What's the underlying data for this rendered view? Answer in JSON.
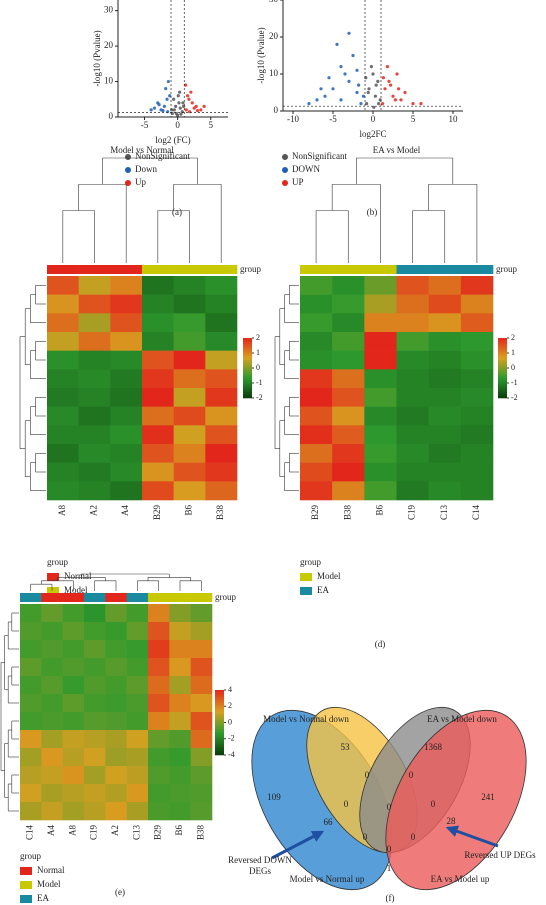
{
  "chart_data": [
    {
      "type": "scatter",
      "caption": "(a)",
      "xlabel": "log2 (FC)",
      "ylabel": "-log10 (Pvalue)",
      "xlim": [
        -9,
        7.6
      ],
      "ylim": [
        0,
        33
      ],
      "xticks": [
        -5,
        0,
        5
      ],
      "yticks": [
        0,
        10,
        20,
        30
      ],
      "thresholds": {
        "x": [
          -1,
          1
        ],
        "y": [
          1.3
        ]
      },
      "series": [
        {
          "name": "NonSignificant",
          "color": "#555555",
          "x": [
            -0.8,
            -0.5,
            -0.3,
            0,
            0.2,
            0.4,
            0.7,
            0.9,
            -0.6,
            0.1,
            -0.2,
            0.5,
            0.3,
            -0.9,
            0.8
          ],
          "values": [
            1,
            2,
            3,
            0.5,
            4,
            2.5,
            1.5,
            3,
            5,
            6,
            1,
            0.8,
            7,
            2,
            4
          ]
        },
        {
          "name": "Down",
          "color": "#1f5fb4",
          "x": [
            -1.5,
            -2,
            -2.5,
            -3,
            -3.5,
            -1.2,
            -1.8,
            -2.2,
            -4,
            -1.4,
            -2.8,
            -1.6
          ],
          "values": [
            1.5,
            3,
            2,
            4,
            2.5,
            6,
            8,
            1.8,
            2,
            10,
            3.5,
            5
          ]
        },
        {
          "name": "Up",
          "color": "#e3261c",
          "x": [
            1.3,
            1.8,
            2.2,
            2.8,
            3.5,
            1.5,
            2,
            2.5,
            1.2,
            3,
            1.7,
            4
          ],
          "values": [
            2,
            1.5,
            4,
            3,
            2,
            6,
            7,
            2.5,
            9,
            1.8,
            5,
            3
          ]
        }
      ]
    },
    {
      "type": "scatter",
      "caption": "(b)",
      "xlabel": "log2FC",
      "ylabel": "-log10 (Pvalue)",
      "xlim": [
        -11.25,
        11.25
      ],
      "ylim": [
        0,
        30
      ],
      "xticks": [
        -10,
        -5,
        0,
        5,
        10
      ],
      "yticks": [
        0,
        10,
        20,
        30
      ],
      "thresholds": {
        "x": [
          -1,
          1
        ],
        "y": [
          1.3
        ]
      },
      "series": [
        {
          "name": "NonSignificant",
          "color": "#555555",
          "x": [
            -0.8,
            -0.5,
            0,
            0.3,
            0.6,
            0.9,
            -0.2,
            0.1,
            -0.6,
            0.4,
            0.7,
            -0.9
          ],
          "values": [
            2,
            6,
            10,
            4,
            8,
            3,
            12,
            1,
            5,
            7,
            2,
            9
          ]
        },
        {
          "name": "DOWN",
          "color": "#1f5fb4",
          "x": [
            -1.5,
            -2,
            -3,
            -4,
            -5,
            -6,
            -7,
            -8,
            -2.5,
            -3.5,
            -4.5,
            -1.2,
            -5.5,
            -3,
            -2,
            -6.5,
            -1.8,
            -4
          ],
          "values": [
            2,
            5,
            8,
            12,
            6,
            4,
            3,
            2,
            15,
            10,
            18,
            4,
            9,
            21,
            11,
            6,
            7,
            3
          ]
        },
        {
          "name": "UP",
          "color": "#e3261c",
          "x": [
            1.2,
            1.5,
            2,
            2.5,
            3,
            3.5,
            4,
            5,
            1.8,
            2.2,
            2.8,
            6,
            1.3,
            3.2
          ],
          "values": [
            2,
            6,
            8,
            4,
            10,
            3,
            5,
            2,
            12,
            7,
            3,
            2,
            9,
            6
          ]
        }
      ]
    },
    {
      "type": "heatmap",
      "caption": "(c)",
      "title": "Model vs Normal",
      "legend_title": "group",
      "columns": [
        "A8",
        "A2",
        "A4",
        "B29",
        "B6",
        "B38"
      ],
      "column_groups": [
        0,
        0,
        0,
        1,
        1,
        1
      ],
      "groups": [
        {
          "name": "Normal",
          "color": "#e3261c"
        },
        {
          "name": "Model",
          "color": "#c9c900"
        }
      ],
      "vlim": [
        -2,
        2
      ],
      "colorbar_ticks": [
        2,
        1,
        0,
        -1,
        -2
      ],
      "colors": [
        "#0a3b0a",
        "#2e9a2e",
        "#d8a020",
        "#e3261c"
      ],
      "values": [
        [
          1.5,
          0.5,
          1.0,
          -1.2,
          -1,
          -0.8
        ],
        [
          0.8,
          1.5,
          1.8,
          -1,
          -1.2,
          -1
        ],
        [
          1.2,
          0.3,
          1.5,
          -0.8,
          -0.6,
          -1.2
        ],
        [
          0.5,
          1.2,
          0.8,
          -1,
          -0.5,
          -0.9
        ],
        [
          -0.8,
          -1,
          -0.9,
          1.5,
          2,
          0.5
        ],
        [
          -1,
          -0.9,
          -1.1,
          1.8,
          1.2,
          1.5
        ],
        [
          -1.1,
          -1,
          -1.2,
          2,
          0.5,
          1.8
        ],
        [
          -0.9,
          -1.2,
          -1,
          1.2,
          1.6,
          0.8
        ],
        [
          -1,
          -1,
          -0.8,
          1.9,
          0.6,
          1.5
        ],
        [
          -1.2,
          -0.9,
          -1,
          1.5,
          1.0,
          2
        ],
        [
          -1,
          -1.1,
          -0.9,
          0.8,
          1.5,
          1.8
        ],
        [
          -0.9,
          -1,
          -1.2,
          1.6,
          0.7,
          1.3
        ]
      ]
    },
    {
      "type": "heatmap",
      "caption": "(d)",
      "title": "EA vs Model",
      "legend_title": "group",
      "columns": [
        "B29",
        "B38",
        "B6",
        "C19",
        "C13",
        "C14"
      ],
      "column_groups": [
        0,
        0,
        0,
        1,
        1,
        1
      ],
      "groups": [
        {
          "name": "Model",
          "color": "#c9c900"
        },
        {
          "name": "EA",
          "color": "#1a8aa0"
        }
      ],
      "vlim": [
        -2,
        2
      ],
      "colorbar_ticks": [
        2,
        1,
        0,
        -1,
        -2
      ],
      "colors": [
        "#0a3b0a",
        "#2e9a2e",
        "#d8a020",
        "#e3261c"
      ],
      "values": [
        [
          -0.5,
          -0.8,
          -0.2,
          1.5,
          1.2,
          1.8
        ],
        [
          -0.8,
          -0.6,
          0.3,
          1.2,
          1.6,
          1.0
        ],
        [
          -0.6,
          -0.9,
          1.0,
          1.0,
          0.8,
          1.4
        ],
        [
          -0.9,
          -0.5,
          2,
          -0.5,
          -0.8,
          -0.7
        ],
        [
          -0.8,
          -0.7,
          2,
          -0.9,
          -1,
          -0.8
        ],
        [
          1.8,
          1.2,
          -0.8,
          -1,
          -1.1,
          -1
        ],
        [
          2,
          1.5,
          -0.5,
          -1,
          -1,
          -0.9
        ],
        [
          1.5,
          0.8,
          -0.9,
          -1.1,
          -0.9,
          -1
        ],
        [
          1.9,
          1.4,
          -0.7,
          -1,
          -1,
          -1.1
        ],
        [
          1.2,
          1.8,
          -0.6,
          -0.9,
          -1.1,
          -1
        ],
        [
          1.6,
          2,
          -0.8,
          -1,
          -1,
          -1
        ],
        [
          1.8,
          1.0,
          -0.5,
          -1.1,
          -0.9,
          -1
        ]
      ]
    },
    {
      "type": "heatmap",
      "caption": "(e)",
      "legend_title": "group",
      "columns": [
        "C14",
        "A4",
        "A8",
        "C19",
        "A2",
        "C13",
        "B29",
        "B6",
        "B38"
      ],
      "column_groups": [
        2,
        0,
        0,
        2,
        0,
        2,
        1,
        1,
        1
      ],
      "groups": [
        {
          "name": "Normal",
          "color": "#e3261c"
        },
        {
          "name": "Model",
          "color": "#c9c900"
        },
        {
          "name": "EA",
          "color": "#1a8aa0"
        }
      ],
      "vlim": [
        -4,
        4
      ],
      "colorbar_ticks": [
        4,
        2,
        0,
        -2,
        -4
      ],
      "colors": [
        "#0a3b0a",
        "#2e9a2e",
        "#d8a020",
        "#e3261c"
      ],
      "values": [
        [
          -1,
          -0.5,
          -1,
          -1.5,
          -0.5,
          -1,
          2,
          0,
          -0.5
        ],
        [
          -0.8,
          -1,
          -0.6,
          -1,
          -1.2,
          -0.5,
          3,
          1,
          0.5
        ],
        [
          -1,
          -0.8,
          -1,
          -0.6,
          -1,
          -1.2,
          3.5,
          2,
          2
        ],
        [
          -0.6,
          -1,
          -0.8,
          -1,
          -0.7,
          -1,
          3,
          1.5,
          3
        ],
        [
          -1,
          -0.7,
          -1.2,
          -0.8,
          -1,
          -0.6,
          2.5,
          0.5,
          2.5
        ],
        [
          -0.8,
          -1,
          -0.6,
          -1,
          -1.1,
          -0.9,
          3,
          2,
          1.5
        ],
        [
          -1,
          -0.9,
          -1,
          -0.7,
          -0.8,
          -1,
          2,
          1,
          3
        ],
        [
          1.5,
          0.5,
          1.0,
          0.8,
          0.6,
          1.2,
          -0.5,
          -0.8,
          2.5
        ],
        [
          0.5,
          1.5,
          0.8,
          1.2,
          0.4,
          0.6,
          -1,
          -1.2,
          0
        ],
        [
          0.8,
          1.0,
          1.6,
          0.5,
          1.2,
          0.9,
          -0.8,
          -1,
          -0.6
        ],
        [
          1.2,
          0.6,
          0.8,
          1.0,
          0.7,
          1.5,
          -1,
          -0.9,
          -0.8
        ],
        [
          0.6,
          1.0,
          0.5,
          0.8,
          1.4,
          0.6,
          -0.9,
          -1,
          -0.7
        ]
      ]
    },
    {
      "type": "venn",
      "caption": "(f)",
      "sets": [
        {
          "name": "Model vs Normal up",
          "color": "#2e86d0"
        },
        {
          "name": "Model vs Normal down",
          "color": "#f5c242"
        },
        {
          "name": "EA vs Model down",
          "color": "#8c8c8c"
        },
        {
          "name": "EA vs Model up",
          "color": "#ec5a5a"
        }
      ],
      "regions": [
        53,
        1368,
        109,
        241,
        0,
        0,
        0,
        0,
        0,
        66,
        28,
        0,
        0,
        1,
        0
      ],
      "annotations": [
        "Reversed DOWN DEGs",
        "Reversed UP DEGs"
      ]
    }
  ]
}
